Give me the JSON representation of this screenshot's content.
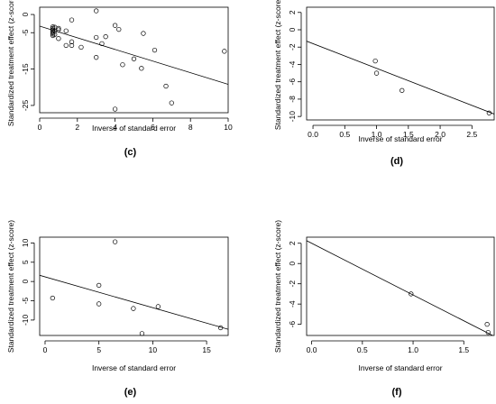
{
  "chart_data": [
    {
      "type": "scatter",
      "label": "(c)",
      "xlabel": "Inverse of standard error",
      "ylabel": "Standardized treatment effect (z-score)",
      "xlim": [
        0,
        10
      ],
      "ylim": [
        -27,
        2
      ],
      "xticks": [
        0,
        2,
        4,
        6,
        8,
        10
      ],
      "yticks": [
        0,
        -5,
        -15,
        -25
      ],
      "regression_line": {
        "intercept": -3.2,
        "slope": -1.6
      },
      "points": [
        {
          "x": 0.7,
          "y": -3.4
        },
        {
          "x": 0.7,
          "y": -3.8
        },
        {
          "x": 0.7,
          "y": -4.2
        },
        {
          "x": 0.7,
          "y": -4.6
        },
        {
          "x": 0.7,
          "y": -5.0
        },
        {
          "x": 0.7,
          "y": -5.4
        },
        {
          "x": 0.7,
          "y": -5.8
        },
        {
          "x": 0.8,
          "y": -3.5
        },
        {
          "x": 0.8,
          "y": -4.5
        },
        {
          "x": 0.8,
          "y": -5.5
        },
        {
          "x": 1.0,
          "y": -3.8
        },
        {
          "x": 1.0,
          "y": -4.2
        },
        {
          "x": 1.0,
          "y": -6.6
        },
        {
          "x": 1.4,
          "y": -4.5
        },
        {
          "x": 1.4,
          "y": -8.5
        },
        {
          "x": 1.7,
          "y": -1.5
        },
        {
          "x": 1.7,
          "y": -7.5
        },
        {
          "x": 1.7,
          "y": -8.5
        },
        {
          "x": 2.2,
          "y": -9.0
        },
        {
          "x": 3.0,
          "y": 1.0
        },
        {
          "x": 3.0,
          "y": -6.3
        },
        {
          "x": 3.0,
          "y": -11.8
        },
        {
          "x": 3.3,
          "y": -8.0
        },
        {
          "x": 3.5,
          "y": -6.1
        },
        {
          "x": 4.0,
          "y": -3.0
        },
        {
          "x": 4.0,
          "y": -26.0
        },
        {
          "x": 4.2,
          "y": -4.1
        },
        {
          "x": 4.4,
          "y": -13.8
        },
        {
          "x": 5.0,
          "y": -12.2
        },
        {
          "x": 5.4,
          "y": -14.8
        },
        {
          "x": 5.5,
          "y": -5.2
        },
        {
          "x": 6.1,
          "y": -9.8
        },
        {
          "x": 6.7,
          "y": -19.7
        },
        {
          "x": 7.0,
          "y": -24.3
        },
        {
          "x": 9.8,
          "y": -10.1
        }
      ]
    },
    {
      "type": "scatter",
      "label": "(d)",
      "xlabel": "Inverse of standard error",
      "ylabel": "Standardized treatment effect (z-score)",
      "xlim": [
        -0.1,
        2.85
      ],
      "ylim": [
        -10.4,
        2.6
      ],
      "xticks": [
        0.0,
        0.5,
        1.0,
        1.5,
        2.0,
        2.5
      ],
      "yticks": [
        2,
        0,
        -2,
        -4,
        -6,
        -8,
        -10
      ],
      "regression_line": {
        "intercept": -1.6,
        "slope": -2.85
      },
      "points": [
        {
          "x": 0.98,
          "y": -3.6
        },
        {
          "x": 1.0,
          "y": -5.0
        },
        {
          "x": 1.4,
          "y": -7.0
        },
        {
          "x": 2.77,
          "y": -9.6
        }
      ]
    },
    {
      "type": "scatter",
      "label": "(e)",
      "xlabel": "Inverse of standard error",
      "ylabel": "Standardized treatment effect (z-score)",
      "xlim": [
        -0.5,
        17
      ],
      "ylim": [
        -14,
        11.5
      ],
      "xticks": [
        0,
        5,
        10,
        15
      ],
      "yticks": [
        10,
        5,
        0,
        -5,
        -10
      ],
      "regression_line": {
        "intercept": 1.2,
        "slope": -0.8
      },
      "points": [
        {
          "x": 0.7,
          "y": -4.3
        },
        {
          "x": 5.0,
          "y": -1.0
        },
        {
          "x": 5.0,
          "y": -5.8
        },
        {
          "x": 6.5,
          "y": 10.3
        },
        {
          "x": 8.2,
          "y": -7.0
        },
        {
          "x": 9.0,
          "y": -13.5
        },
        {
          "x": 10.5,
          "y": -6.5
        },
        {
          "x": 16.3,
          "y": -12.0
        }
      ]
    },
    {
      "type": "scatter",
      "label": "(f)",
      "xlabel": "Inverse of standard error",
      "ylabel": "Standardized treatment effect (z-score)",
      "xlim": [
        -0.05,
        1.8
      ],
      "ylim": [
        -7.1,
        2.6
      ],
      "xticks": [
        0.0,
        0.5,
        1.0,
        1.5
      ],
      "yticks": [
        2,
        0,
        -2,
        -4,
        -6
      ],
      "regression_line": {
        "intercept": 2.0,
        "slope": -5.1
      },
      "points": [
        {
          "x": 0.98,
          "y": -3.0
        },
        {
          "x": 1.73,
          "y": -6.0
        },
        {
          "x": 1.74,
          "y": -6.8
        }
      ]
    }
  ]
}
